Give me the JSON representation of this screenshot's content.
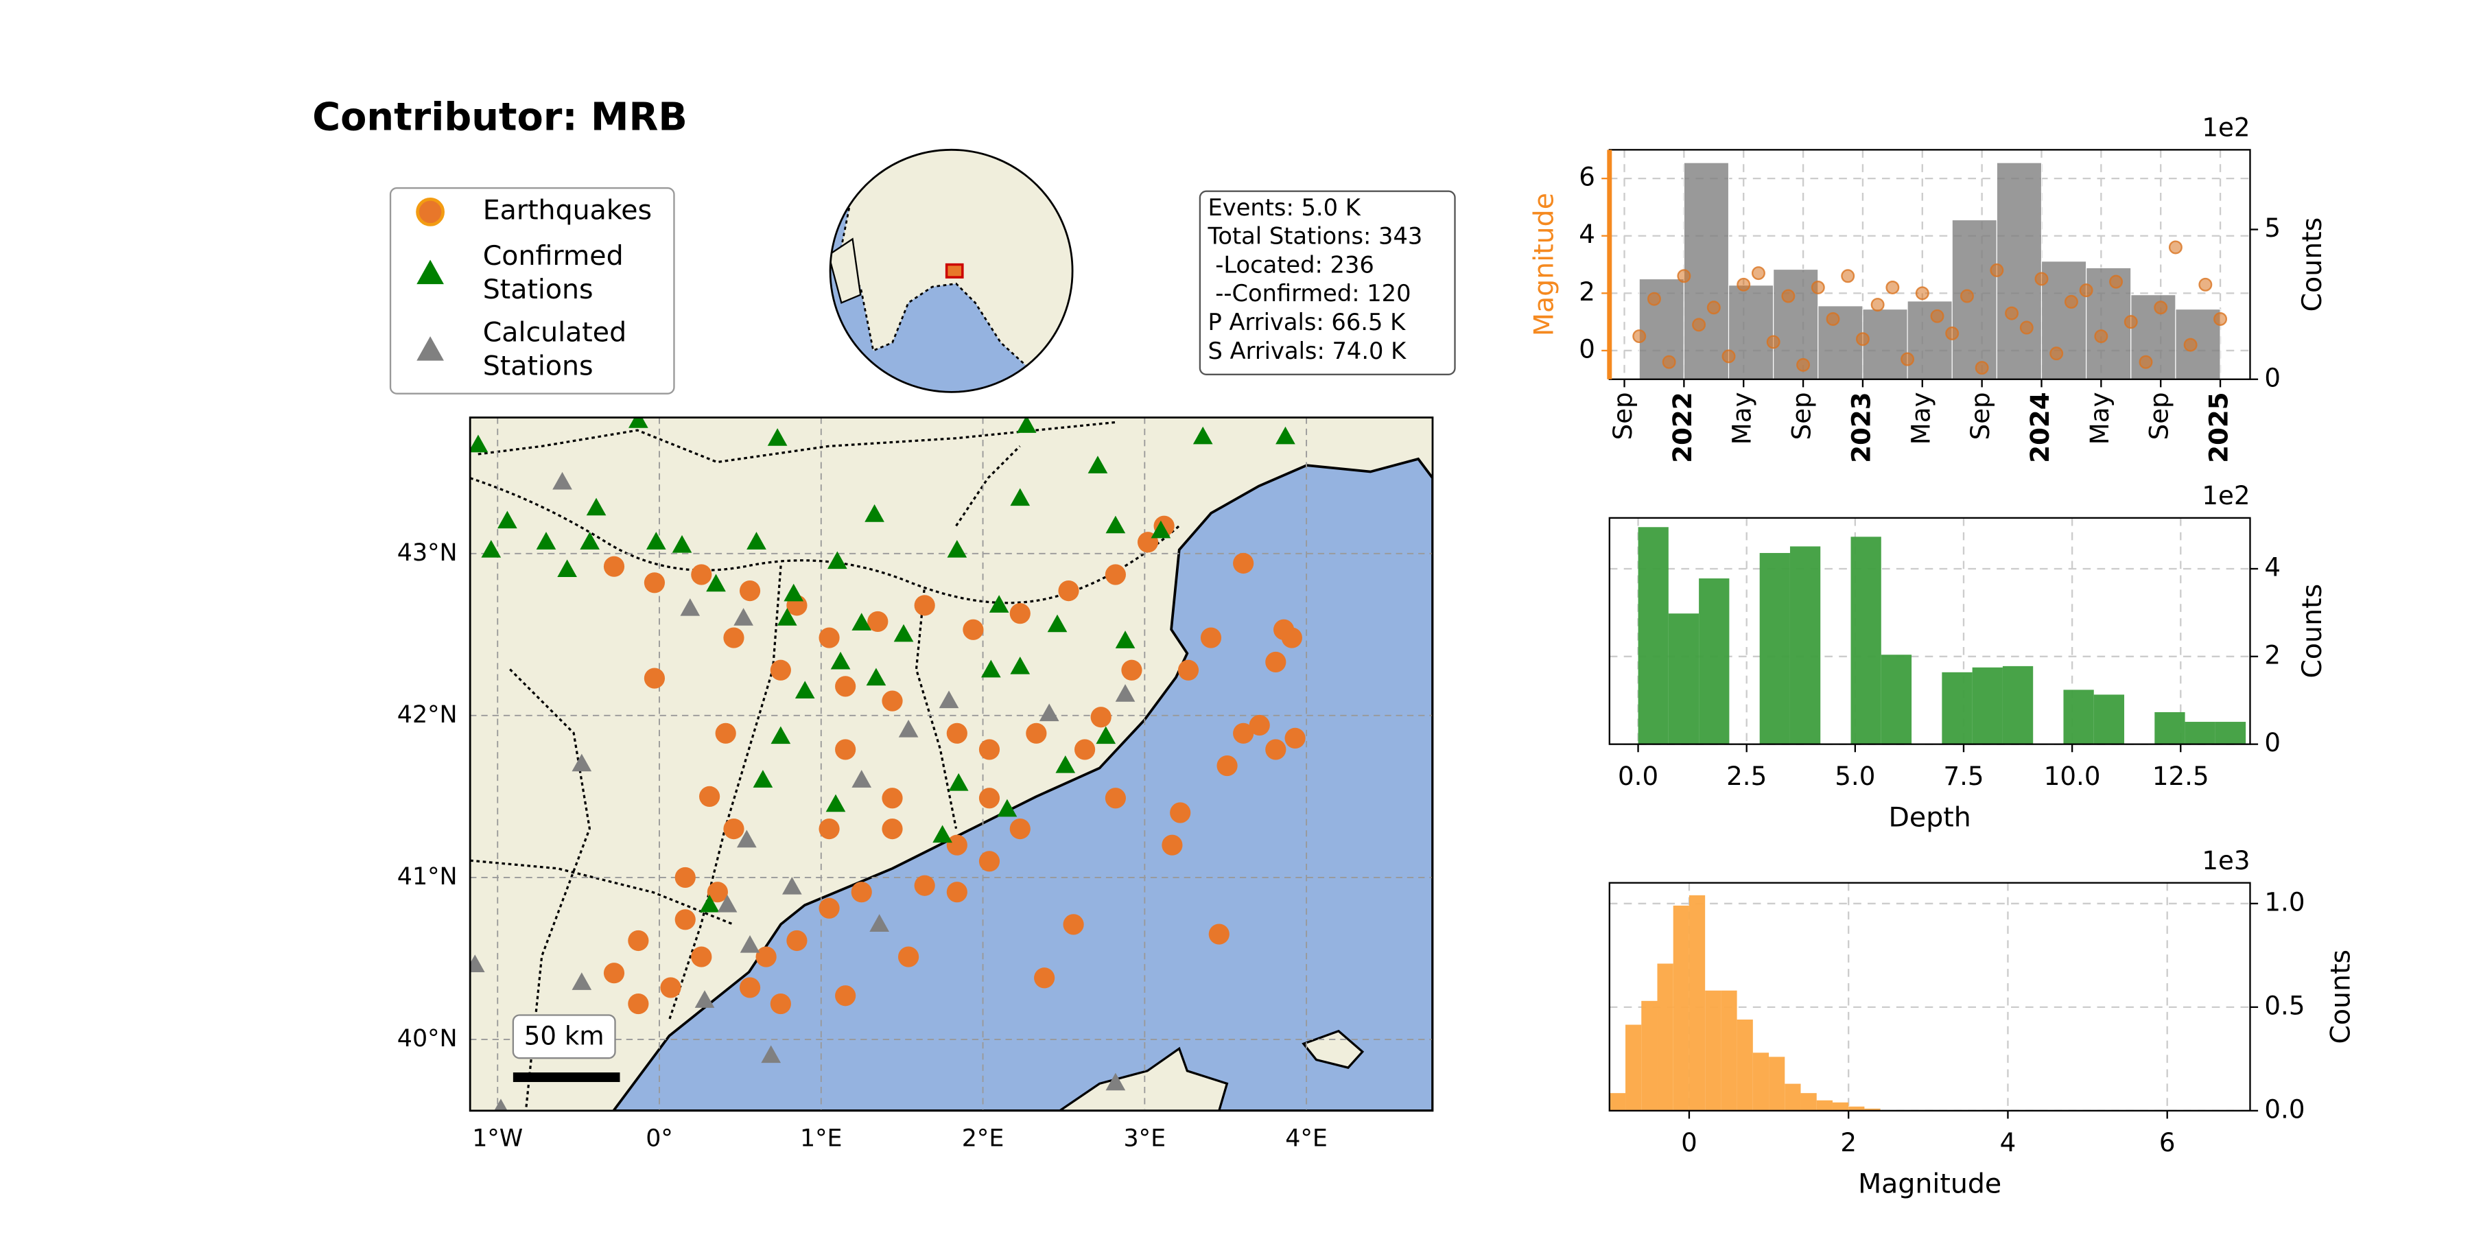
{
  "title": "Contributor: MRB",
  "stats": [
    "Events: 5.0 K",
    "Total Stations: 343",
    " -Located: 236",
    " --Confirmed: 120",
    "P Arrivals: 66.5 K",
    "S Arrivals: 74.0 K"
  ],
  "chart_data": [
    {
      "type": "map",
      "xlim": [
        -1.17,
        4.78
      ],
      "ylim": [
        39.56,
        43.84
      ],
      "xticks": [
        {
          "value": -1,
          "label": "1°W"
        },
        {
          "value": 0,
          "label": "0°"
        },
        {
          "value": 1,
          "label": "1°E"
        },
        {
          "value": 2,
          "label": "2°E"
        },
        {
          "value": 3,
          "label": "3°E"
        },
        {
          "value": 4,
          "label": "4°E"
        }
      ],
      "yticks": [
        {
          "value": 40,
          "label": "40°N"
        },
        {
          "value": 41,
          "label": "41°N"
        },
        {
          "value": 42,
          "label": "42°N"
        },
        {
          "value": 43,
          "label": "43°N"
        }
      ],
      "grid": true,
      "scale_bar_label": "50 km",
      "series": [
        {
          "name": "Earthquakes",
          "marker": "circle",
          "color": "#e8772a",
          "x": [
            -0.28,
            -0.03,
            0.26,
            0.56,
            0.85,
            1.05,
            1.35,
            1.64,
            1.94,
            2.23,
            2.53,
            2.82,
            3.02,
            3.12,
            3.61,
            3.27,
            3.41,
            3.81,
            3.91,
            3.61,
            3.81,
            3.71,
            3.51,
            3.22,
            3.17,
            2.82,
            2.63,
            2.33,
            2.04,
            1.84,
            1.44,
            1.15,
            0.75,
            0.46,
            -0.03,
            0.41,
            0.31,
            0.46,
            1.05,
            1.44,
            1.84,
            2.23,
            2.04,
            1.84,
            1.64,
            1.25,
            1.05,
            0.85,
            0.66,
            0.36,
            0.16,
            -0.13,
            -0.28,
            0.07,
            0.26,
            0.56,
            0.75,
            1.15,
            1.54,
            2.38,
            2.56,
            3.46,
            3.93,
            3.86,
            -0.13,
            0.16,
            1.15,
            2.04,
            1.44,
            2.92,
            2.73
          ],
          "y": [
            42.92,
            42.82,
            42.87,
            42.77,
            42.68,
            42.48,
            42.58,
            42.68,
            42.53,
            42.63,
            42.77,
            42.87,
            43.07,
            43.17,
            42.94,
            42.28,
            42.48,
            42.33,
            42.48,
            41.89,
            41.79,
            41.94,
            41.69,
            41.4,
            41.2,
            41.49,
            41.79,
            41.89,
            41.79,
            41.89,
            42.09,
            42.18,
            42.28,
            42.48,
            42.23,
            41.89,
            41.5,
            41.3,
            41.3,
            41.3,
            41.2,
            41.3,
            41.1,
            40.91,
            40.95,
            40.91,
            40.81,
            40.61,
            40.51,
            40.91,
            41.0,
            40.61,
            40.41,
            40.32,
            40.51,
            40.32,
            40.22,
            40.27,
            40.51,
            40.38,
            40.71,
            40.65,
            41.86,
            42.53,
            40.22,
            40.74,
            41.79,
            41.49,
            41.49,
            42.28,
            41.99
          ]
        },
        {
          "name": "Confirmed Stations",
          "marker": "triangle",
          "color": "#008000",
          "x": [
            -1.12,
            -0.13,
            0.73,
            2.27,
            3.36,
            3.87,
            -0.94,
            -0.7,
            -1.04,
            -0.39,
            -0.57,
            -0.43,
            -0.02,
            0.14,
            0.35,
            0.6,
            0.83,
            0.79,
            1.1,
            1.33,
            1.25,
            1.51,
            1.84,
            2.23,
            2.71,
            2.82,
            3.1,
            2.46,
            2.1,
            2.05,
            2.23,
            1.12,
            0.9,
            0.75,
            0.64,
            1.34,
            1.85,
            2.15,
            2.51,
            1.75,
            1.09,
            0.31,
            2.88,
            2.76
          ],
          "y": [
            43.67,
            43.82,
            43.71,
            43.79,
            43.72,
            43.72,
            43.2,
            43.07,
            43.02,
            43.28,
            42.9,
            43.07,
            43.07,
            43.05,
            42.81,
            43.07,
            42.75,
            42.6,
            42.95,
            43.24,
            42.57,
            42.5,
            43.02,
            43.34,
            43.54,
            43.17,
            43.14,
            42.56,
            42.68,
            42.28,
            42.3,
            42.33,
            42.15,
            41.87,
            41.6,
            42.23,
            41.58,
            41.42,
            41.69,
            41.26,
            41.45,
            40.83,
            42.46,
            41.87
          ]
        },
        {
          "name": "Calculated Stations",
          "marker": "triangle",
          "color": "#808080",
          "x": [
            -0.6,
            -0.48,
            0.54,
            0.82,
            0.56,
            0.69,
            1.36,
            1.79,
            2.41,
            2.88,
            0.28,
            -0.48,
            -1.14,
            -0.98,
            2.82,
            0.19,
            0.52,
            0.42,
            1.54,
            1.25
          ],
          "y": [
            43.44,
            41.7,
            41.23,
            40.94,
            40.58,
            39.9,
            40.71,
            42.09,
            42.01,
            42.13,
            40.24,
            40.35,
            40.46,
            39.57,
            39.73,
            42.66,
            42.6,
            40.83,
            41.91,
            41.6
          ]
        }
      ]
    },
    {
      "type": "time_combo",
      "xlim": [
        "2021-08",
        "2025-03"
      ],
      "xticks": [
        {
          "value": "2021-09",
          "label": "Sep"
        },
        {
          "value": "2022-01",
          "label": "2022"
        },
        {
          "value": "2022-05",
          "label": "May"
        },
        {
          "value": "2022-09",
          "label": "Sep"
        },
        {
          "value": "2023-01",
          "label": "2023"
        },
        {
          "value": "2023-05",
          "label": "May"
        },
        {
          "value": "2023-09",
          "label": "Sep"
        },
        {
          "value": "2024-01",
          "label": "2024"
        },
        {
          "value": "2024-05",
          "label": "May"
        },
        {
          "value": "2024-09",
          "label": "Sep"
        },
        {
          "value": "2025-01",
          "label": "2025"
        }
      ],
      "ylabel": "Magnitude",
      "ylabel_color": "#f5891f",
      "ylim": [
        -1,
        7
      ],
      "yticks": [
        0,
        2,
        4,
        6
      ],
      "y2label": "Counts",
      "y2lim": [
        0,
        7.66
      ],
      "y2ticks": [
        0,
        5
      ],
      "y2_offset_label": "1e2",
      "grid": true,
      "histogram": {
        "axis": "y2",
        "color": "#808080",
        "bins": [
          "2021-10",
          "2022-01",
          "2022-04",
          "2022-07",
          "2022-10",
          "2023-01",
          "2023-04",
          "2023-07",
          "2023-10",
          "2024-01",
          "2024-04",
          "2024-07",
          "2024-10",
          "2025-01"
        ],
        "counts": [
          3.35,
          7.23,
          3.14,
          3.67,
          2.45,
          2.34,
          2.61,
          5.32,
          7.23,
          3.94,
          3.72,
          2.82,
          2.34
        ]
      },
      "scatter": {
        "color": "#d9731f",
        "x": [
          "2021-10",
          "2021-11",
          "2021-12",
          "2022-01",
          "2022-02",
          "2022-03",
          "2022-04",
          "2022-05",
          "2022-06",
          "2022-07",
          "2022-08",
          "2022-09",
          "2022-10",
          "2022-11",
          "2022-12",
          "2023-01",
          "2023-02",
          "2023-03",
          "2023-04",
          "2023-05",
          "2023-06",
          "2023-07",
          "2023-08",
          "2023-09",
          "2023-10",
          "2023-11",
          "2023-12",
          "2024-01",
          "2024-02",
          "2024-03",
          "2024-04",
          "2024-05",
          "2024-06",
          "2024-07",
          "2024-08",
          "2024-09",
          "2024-10",
          "2024-11",
          "2024-12",
          "2025-01"
        ],
        "y": [
          0.5,
          1.8,
          -0.4,
          2.6,
          0.9,
          1.5,
          -0.2,
          2.3,
          2.7,
          0.3,
          1.9,
          -0.5,
          2.2,
          1.1,
          2.6,
          0.4,
          1.6,
          2.2,
          -0.3,
          2.0,
          1.2,
          0.6,
          1.9,
          -0.6,
          2.8,
          1.3,
          0.8,
          2.5,
          -0.1,
          1.7,
          2.1,
          0.5,
          2.4,
          1.0,
          -0.4,
          1.5,
          3.6,
          0.2,
          2.3,
          1.1
        ]
      }
    },
    {
      "type": "histogram",
      "xlabel": "Depth",
      "ylabel": "Counts",
      "y_offset_label": "1e2",
      "yaxis_side": "right",
      "color": "#3e9e3e",
      "grid": true,
      "xlim": [
        -0.66,
        14.1
      ],
      "xticks": [
        {
          "value": 0,
          "label": "0.0"
        },
        2.5,
        {
          "value": 5,
          "label": "5.0"
        },
        7.5,
        {
          "value": 10,
          "label": "10.0"
        },
        12.5
      ],
      "ylim": [
        0,
        5.16
      ],
      "yticks": [
        0,
        2,
        4
      ],
      "bins": [
        0,
        0.7,
        1.4,
        2.1,
        2.8,
        3.5,
        4.2,
        4.9,
        5.6,
        6.3,
        7.0,
        7.7,
        8.4,
        9.1,
        9.8,
        10.5,
        11.2,
        11.9,
        12.6,
        13.3,
        14.0
      ],
      "counts": [
        4.95,
        2.98,
        3.78,
        0,
        4.36,
        4.51,
        0,
        4.73,
        2.04,
        0,
        1.64,
        1.75,
        1.78,
        0,
        1.24,
        1.13,
        0,
        0.73,
        0.51,
        0.51
      ]
    },
    {
      "type": "histogram",
      "xlabel": "Magnitude",
      "ylabel": "Counts",
      "y_offset_label": "1e3",
      "yaxis_side": "right",
      "color": "#fca845",
      "grid": true,
      "xlim": [
        -1.0,
        7.04
      ],
      "xticks": [
        0,
        2,
        4,
        6
      ],
      "ylim": [
        0,
        1.1
      ],
      "yticks": [
        {
          "value": 0,
          "label": "0.0"
        },
        0.5,
        {
          "value": 1,
          "label": "1.0"
        }
      ],
      "bins": [
        -1.0,
        -0.8,
        -0.6,
        -0.4,
        -0.2,
        0,
        0.2,
        0.4,
        0.6,
        0.8,
        1.0,
        1.2,
        1.4,
        1.6,
        1.8,
        2.0,
        2.2,
        2.4
      ],
      "counts": [
        0.085,
        0.415,
        0.53,
        0.71,
        0.99,
        1.04,
        0.58,
        0.58,
        0.44,
        0.28,
        0.26,
        0.13,
        0.085,
        0.05,
        0.04,
        0.02,
        0.01
      ]
    }
  ]
}
